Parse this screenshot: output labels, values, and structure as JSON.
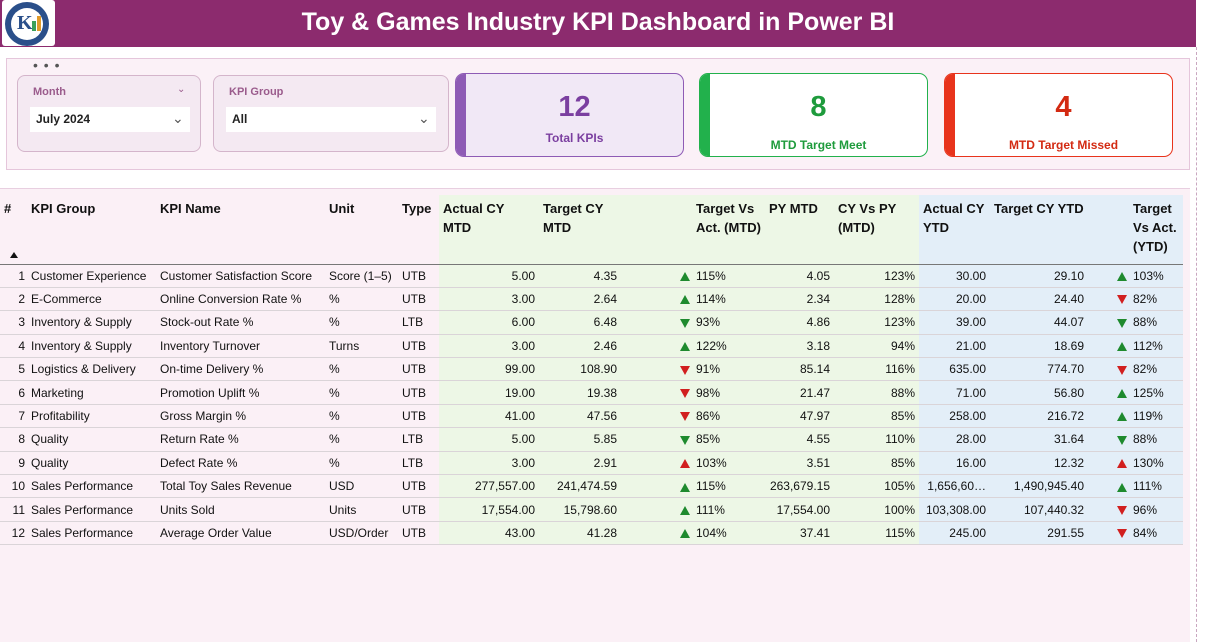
{
  "header": {
    "title": "Toy & Games Industry KPI Dashboard in Power BI",
    "bg_color": "#8c2b6e"
  },
  "filters": {
    "more_icon": "more-options-icon",
    "month": {
      "label": "Month",
      "value": "July 2024"
    },
    "kpi_group": {
      "label": "KPI Group",
      "value": "All"
    }
  },
  "cards": [
    {
      "value": "12",
      "label": "Total KPIs",
      "accent": "#8e5bb5",
      "text_color": "#7b3fa0"
    },
    {
      "value": "8",
      "label": "MTD Target Meet",
      "accent": "#22b14c",
      "text_color": "#1e9b3c"
    },
    {
      "value": "4",
      "label": "MTD Target Missed",
      "accent": "#e8341c",
      "text_color": "#d32a12"
    }
  ],
  "table": {
    "columns": [
      "#",
      "KPI Group",
      "KPI Name",
      "Unit",
      "Type",
      "Actual CY MTD",
      "Target CY MTD",
      "",
      "Target Vs Act. (MTD)",
      "PY MTD",
      "CY Vs PY (MTD)",
      "Actual CY YTD",
      "Target CY YTD",
      "",
      "Target Vs Act. (YTD)"
    ],
    "rows": [
      {
        "idx": "1",
        "group": "Customer Experience",
        "name": "Customer Satisfaction Score",
        "unit": "Score (1–5)",
        "type": "UTB",
        "act_mtd": "5.00",
        "tgt_mtd": "4.35",
        "mtd_icon": "up-green",
        "tva_mtd": "115%",
        "py_mtd": "4.05",
        "cy_vs_py": "123%",
        "act_ytd": "30.00",
        "tgt_ytd": "29.10",
        "ytd_icon": "up-green",
        "tva_ytd": "103%"
      },
      {
        "idx": "2",
        "group": "E-Commerce",
        "name": "Online Conversion Rate %",
        "unit": "%",
        "type": "UTB",
        "act_mtd": "3.00",
        "tgt_mtd": "2.64",
        "mtd_icon": "up-green",
        "tva_mtd": "114%",
        "py_mtd": "2.34",
        "cy_vs_py": "128%",
        "act_ytd": "20.00",
        "tgt_ytd": "24.40",
        "ytd_icon": "down-red",
        "tva_ytd": "82%"
      },
      {
        "idx": "3",
        "group": "Inventory & Supply",
        "name": "Stock-out Rate %",
        "unit": "%",
        "type": "LTB",
        "act_mtd": "6.00",
        "tgt_mtd": "6.48",
        "mtd_icon": "down-green",
        "tva_mtd": "93%",
        "py_mtd": "4.86",
        "cy_vs_py": "123%",
        "act_ytd": "39.00",
        "tgt_ytd": "44.07",
        "ytd_icon": "down-green",
        "tva_ytd": "88%"
      },
      {
        "idx": "4",
        "group": "Inventory & Supply",
        "name": "Inventory Turnover",
        "unit": "Turns",
        "type": "UTB",
        "act_mtd": "3.00",
        "tgt_mtd": "2.46",
        "mtd_icon": "up-green",
        "tva_mtd": "122%",
        "py_mtd": "3.18",
        "cy_vs_py": "94%",
        "act_ytd": "21.00",
        "tgt_ytd": "18.69",
        "ytd_icon": "up-green",
        "tva_ytd": "112%"
      },
      {
        "idx": "5",
        "group": "Logistics & Delivery",
        "name": "On-time Delivery %",
        "unit": "%",
        "type": "UTB",
        "act_mtd": "99.00",
        "tgt_mtd": "108.90",
        "mtd_icon": "down-red",
        "tva_mtd": "91%",
        "py_mtd": "85.14",
        "cy_vs_py": "116%",
        "act_ytd": "635.00",
        "tgt_ytd": "774.70",
        "ytd_icon": "down-red",
        "tva_ytd": "82%"
      },
      {
        "idx": "6",
        "group": "Marketing",
        "name": "Promotion Uplift %",
        "unit": "%",
        "type": "UTB",
        "act_mtd": "19.00",
        "tgt_mtd": "19.38",
        "mtd_icon": "down-red",
        "tva_mtd": "98%",
        "py_mtd": "21.47",
        "cy_vs_py": "88%",
        "act_ytd": "71.00",
        "tgt_ytd": "56.80",
        "ytd_icon": "up-green",
        "tva_ytd": "125%"
      },
      {
        "idx": "7",
        "group": "Profitability",
        "name": "Gross Margin %",
        "unit": "%",
        "type": "UTB",
        "act_mtd": "41.00",
        "tgt_mtd": "47.56",
        "mtd_icon": "down-red",
        "tva_mtd": "86%",
        "py_mtd": "47.97",
        "cy_vs_py": "85%",
        "act_ytd": "258.00",
        "tgt_ytd": "216.72",
        "ytd_icon": "up-green",
        "tva_ytd": "119%"
      },
      {
        "idx": "8",
        "group": "Quality",
        "name": "Return Rate %",
        "unit": "%",
        "type": "LTB",
        "act_mtd": "5.00",
        "tgt_mtd": "5.85",
        "mtd_icon": "down-green",
        "tva_mtd": "85%",
        "py_mtd": "4.55",
        "cy_vs_py": "110%",
        "act_ytd": "28.00",
        "tgt_ytd": "31.64",
        "ytd_icon": "down-green",
        "tva_ytd": "88%"
      },
      {
        "idx": "9",
        "group": "Quality",
        "name": "Defect Rate %",
        "unit": "%",
        "type": "LTB",
        "act_mtd": "3.00",
        "tgt_mtd": "2.91",
        "mtd_icon": "up-red",
        "tva_mtd": "103%",
        "py_mtd": "3.51",
        "cy_vs_py": "85%",
        "act_ytd": "16.00",
        "tgt_ytd": "12.32",
        "ytd_icon": "up-red",
        "tva_ytd": "130%"
      },
      {
        "idx": "10",
        "group": "Sales Performance",
        "name": "Total Toy Sales Revenue",
        "unit": "USD",
        "type": "UTB",
        "act_mtd": "277,557.00",
        "tgt_mtd": "241,474.59",
        "mtd_icon": "up-green",
        "tva_mtd": "115%",
        "py_mtd": "263,679.15",
        "cy_vs_py": "105%",
        "act_ytd": "1,656,60…",
        "tgt_ytd": "1,490,945.40",
        "ytd_icon": "up-green",
        "tva_ytd": "111%"
      },
      {
        "idx": "11",
        "group": "Sales Performance",
        "name": "Units Sold",
        "unit": "Units",
        "type": "UTB",
        "act_mtd": "17,554.00",
        "tgt_mtd": "15,798.60",
        "mtd_icon": "up-green",
        "tva_mtd": "111%",
        "py_mtd": "17,554.00",
        "cy_vs_py": "100%",
        "act_ytd": "103,308.00",
        "tgt_ytd": "107,440.32",
        "ytd_icon": "down-red",
        "tva_ytd": "96%"
      },
      {
        "idx": "12",
        "group": "Sales Performance",
        "name": "Average Order Value",
        "unit": "USD/Order",
        "type": "UTB",
        "act_mtd": "43.00",
        "tgt_mtd": "41.28",
        "mtd_icon": "up-green",
        "tva_mtd": "104%",
        "py_mtd": "37.41",
        "cy_vs_py": "115%",
        "act_ytd": "245.00",
        "tgt_ytd": "291.55",
        "ytd_icon": "down-red",
        "tva_ytd": "84%"
      }
    ]
  }
}
